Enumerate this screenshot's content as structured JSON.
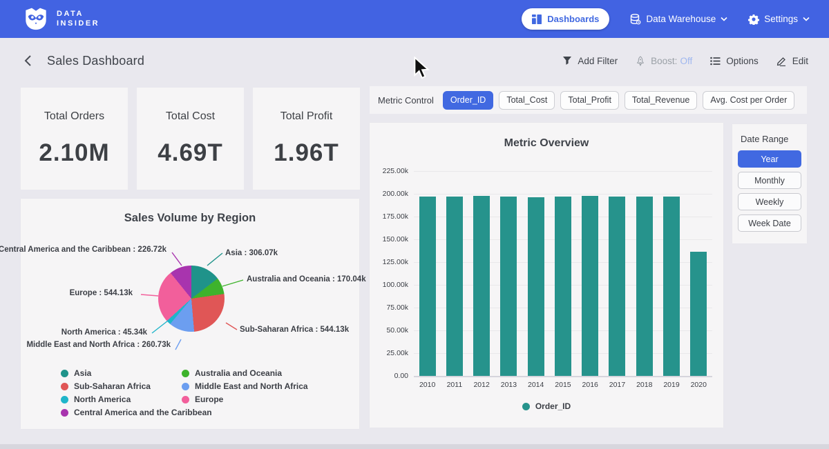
{
  "colors": {
    "navbar": "#4263e2",
    "accent": "#4169e1",
    "bar_teal": "#26938c",
    "boost_off": "#9fb7ef"
  },
  "navbar": {
    "brand_line1": "DATA",
    "brand_line2": "INSIDER",
    "dashboards_label": "Dashboards",
    "data_warehouse_label": "Data Warehouse",
    "settings_label": "Settings"
  },
  "header": {
    "title": "Sales Dashboard",
    "add_filter_label": "Add Filter",
    "boost_label": "Boost:",
    "boost_state": "Off",
    "options_label": "Options",
    "edit_label": "Edit"
  },
  "kpis": [
    {
      "label": "Total Orders",
      "value": "2.10M"
    },
    {
      "label": "Total Cost",
      "value": "4.69T"
    },
    {
      "label": "Total Profit",
      "value": "1.96T"
    }
  ],
  "metric_control": {
    "label": "Metric Control",
    "options": [
      "Order_ID",
      "Total_Cost",
      "Total_Profit",
      "Total_Revenue",
      "Avg. Cost per Order"
    ],
    "selected": "Order_ID"
  },
  "date_range": {
    "label": "Date Range",
    "options": [
      "Year",
      "Monthly",
      "Weekly",
      "Week Date"
    ],
    "selected": "Year"
  },
  "chart_data": [
    {
      "type": "pie",
      "title": "Sales Volume by Region",
      "slices": [
        {
          "label": "Asia",
          "value_k": 306.07,
          "color": "#1f938a"
        },
        {
          "label": "Australia and Oceania",
          "value_k": 170.04,
          "color": "#3eb32c"
        },
        {
          "label": "Sub-Saharan Africa",
          "value_k": 544.13,
          "color": "#e05656"
        },
        {
          "label": "Middle East and North Africa",
          "value_k": 260.73,
          "color": "#6c9ef0"
        },
        {
          "label": "North America",
          "value_k": 45.34,
          "color": "#1fb5ca"
        },
        {
          "label": "Europe",
          "value_k": 544.13,
          "color": "#f25f9b"
        },
        {
          "label": "Central America and the Caribbean",
          "value_k": 226.72,
          "color": "#a834ae"
        }
      ],
      "label_separator": " : ",
      "legend_columns": [
        [
          0,
          2,
          4,
          6
        ],
        [
          1,
          3,
          5
        ]
      ]
    },
    {
      "type": "bar",
      "title": "Metric Overview",
      "categories": [
        "2010",
        "2011",
        "2012",
        "2013",
        "2014",
        "2015",
        "2016",
        "2017",
        "2018",
        "2019",
        "2020"
      ],
      "series": [
        {
          "name": "Order_ID",
          "values_k": [
            196.9,
            196.9,
            197.8,
            196.9,
            196.6,
            196.9,
            197.8,
            196.9,
            196.9,
            196.9,
            136.4
          ]
        }
      ],
      "ylim_k": [
        0,
        225
      ],
      "yticks": [
        "225.00k",
        "200.00k",
        "175.00k",
        "150.00k",
        "125.00k",
        "100.00k",
        "75.00k",
        "50.00k",
        "25.00k",
        "0.00"
      ],
      "grid": true,
      "legend_position": "bottom"
    }
  ]
}
